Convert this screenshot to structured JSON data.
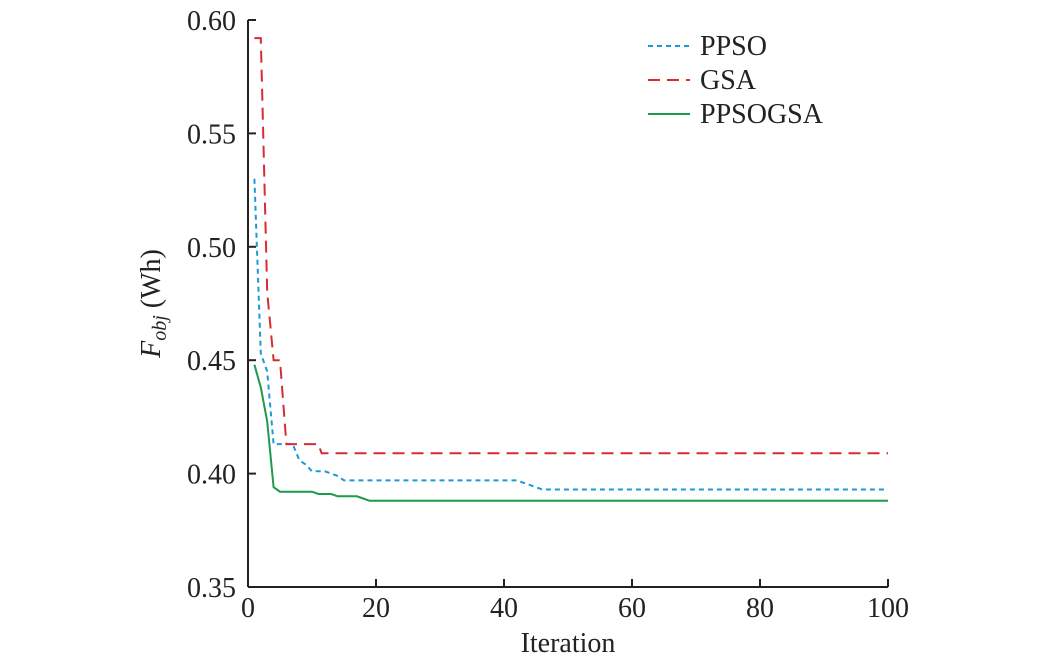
{
  "chart_data": {
    "type": "line",
    "xlabel": "Iteration",
    "ylabel_main": "F",
    "ylabel_sub": "obj",
    "ylabel_unit": " (Wh)",
    "xlim": [
      0,
      100
    ],
    "ylim": [
      0.35,
      0.6
    ],
    "xticks": [
      0,
      20,
      40,
      60,
      80,
      100
    ],
    "xtick_labels": [
      "0",
      "20",
      "40",
      "60",
      "80",
      "100"
    ],
    "yticks": [
      0.35,
      0.4,
      0.45,
      0.5,
      0.55,
      0.6
    ],
    "ytick_labels": [
      "0.35",
      "0.40",
      "0.45",
      "0.50",
      "0.55",
      "0.60"
    ],
    "grid": false,
    "legend_position": "top-right",
    "series": [
      {
        "name": "PPSO",
        "color": "#1a9ad6",
        "dash": "dotted",
        "points": [
          [
            1,
            0.53
          ],
          [
            2,
            0.453
          ],
          [
            3,
            0.445
          ],
          [
            4,
            0.413
          ],
          [
            5,
            0.413
          ],
          [
            6,
            0.413
          ],
          [
            7,
            0.413
          ],
          [
            8,
            0.406
          ],
          [
            9,
            0.404
          ],
          [
            10,
            0.401
          ],
          [
            12,
            0.401
          ],
          [
            14,
            0.399
          ],
          [
            15,
            0.397
          ],
          [
            20,
            0.397
          ],
          [
            42,
            0.397
          ],
          [
            44,
            0.395
          ],
          [
            46,
            0.393
          ],
          [
            100,
            0.393
          ]
        ]
      },
      {
        "name": "GSA",
        "color": "#d92b35",
        "dash": "dashed",
        "points": [
          [
            1,
            0.592
          ],
          [
            2,
            0.592
          ],
          [
            3,
            0.48
          ],
          [
            4,
            0.45
          ],
          [
            5,
            0.45
          ],
          [
            6,
            0.413
          ],
          [
            10,
            0.413
          ],
          [
            11,
            0.413
          ],
          [
            11.5,
            0.409
          ],
          [
            100,
            0.409
          ]
        ]
      },
      {
        "name": "PPSOGSA",
        "color": "#1e9a4c",
        "dash": "solid",
        "points": [
          [
            1,
            0.448
          ],
          [
            2,
            0.438
          ],
          [
            3,
            0.423
          ],
          [
            4,
            0.394
          ],
          [
            5,
            0.392
          ],
          [
            7,
            0.392
          ],
          [
            10,
            0.392
          ],
          [
            11,
            0.391
          ],
          [
            13,
            0.391
          ],
          [
            14,
            0.39
          ],
          [
            17,
            0.39
          ],
          [
            18,
            0.389
          ],
          [
            19,
            0.388
          ],
          [
            45,
            0.388
          ],
          [
            46,
            0.388
          ],
          [
            63,
            0.388
          ],
          [
            100,
            0.388
          ]
        ]
      }
    ]
  }
}
